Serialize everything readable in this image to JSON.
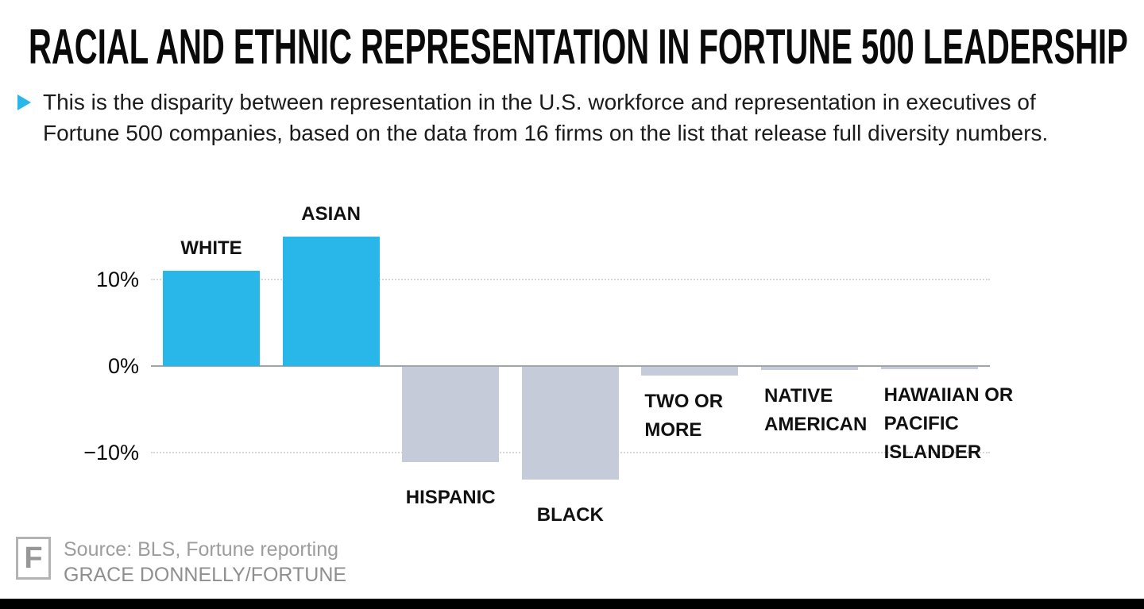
{
  "header": {
    "title": "RACIAL AND ETHNIC REPRESENTATION IN FORTUNE 500 LEADERSHIP",
    "subtitle": "This is the disparity between representation in the U.S. workforce and representation in executives of Fortune 500 companies, based on the data from 16 firms on the list that release full diversity numbers."
  },
  "footer": {
    "logo": "F",
    "source": "Source: BLS, Fortune reporting",
    "credit": "GRACE DONNELLY/FORTUNE"
  },
  "chart_data": {
    "type": "bar",
    "title": "RACIAL AND ETHNIC REPRESENTATION IN FORTUNE 500 LEADERSHIP",
    "xlabel": "",
    "ylabel": "",
    "unit": "%",
    "categories": [
      "White",
      "Asian",
      "Hispanic",
      "Black",
      "Two or more",
      "Native American",
      "Hawaiian or Pacific Islander"
    ],
    "values": [
      11,
      15,
      -11,
      -13,
      -1,
      -0.4,
      -0.3
    ],
    "bar_labels": [
      [
        "WHITE"
      ],
      [
        "ASIAN"
      ],
      [
        "HISPANIC"
      ],
      [
        "BLACK"
      ],
      [
        "TWO OR",
        "MORE"
      ],
      [
        "NATIVE",
        "AMERICAN"
      ],
      [
        "HAWAIIAN OR",
        "PACIFIC",
        "ISLANDER"
      ]
    ],
    "yticks": [
      {
        "label": "10%",
        "value": 10
      },
      {
        "label": "0%",
        "value": 0
      },
      {
        "label": "−10%",
        "value": -10
      }
    ],
    "ylim": [
      -15,
      17
    ],
    "grid": "dotted horizontal lines at 10% and -10%, solid axis line at 0%",
    "legend": "none",
    "colors": {
      "positive": "#29b6e8",
      "negative": "#c6cbd9"
    }
  }
}
